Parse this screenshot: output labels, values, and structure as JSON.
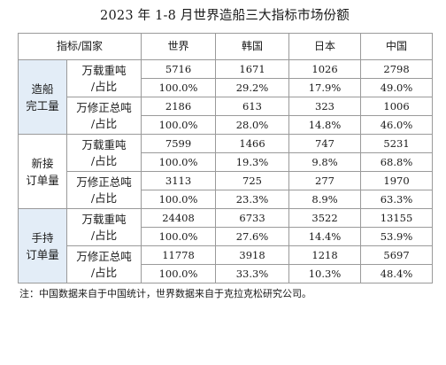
{
  "title": "2023 年 1-8 月世界造船三大指标市场份额",
  "table": {
    "header": [
      "指标/国家",
      "世界",
      "韩国",
      "日本",
      "中国"
    ],
    "groups": [
      {
        "name_line1": "造船",
        "name_line2": "完工量",
        "metrics": [
          {
            "label_line1": "万载重吨",
            "label_line2": "/占比",
            "values": [
              "5716",
              "1671",
              "1026",
              "2798"
            ],
            "shares": [
              "100.0%",
              "29.2%",
              "17.9%",
              "49.0%"
            ]
          },
          {
            "label_line1": "万修正总吨",
            "label_line2": "/占比",
            "values": [
              "2186",
              "613",
              "323",
              "1006"
            ],
            "shares": [
              "100.0%",
              "28.0%",
              "14.8%",
              "46.0%"
            ]
          }
        ]
      },
      {
        "name_line1": "新接",
        "name_line2": "订单量",
        "metrics": [
          {
            "label_line1": "万载重吨",
            "label_line2": "/占比",
            "values": [
              "7599",
              "1466",
              "747",
              "5231"
            ],
            "shares": [
              "100.0%",
              "19.3%",
              "9.8%",
              "68.8%"
            ]
          },
          {
            "label_line1": "万修正总吨",
            "label_line2": "/占比",
            "values": [
              "3113",
              "725",
              "277",
              "1970"
            ],
            "shares": [
              "100.0%",
              "23.3%",
              "8.9%",
              "63.3%"
            ]
          }
        ]
      },
      {
        "name_line1": "手持",
        "name_line2": "订单量",
        "metrics": [
          {
            "label_line1": "万载重吨",
            "label_line2": "/占比",
            "values": [
              "24408",
              "6733",
              "3522",
              "13155"
            ],
            "shares": [
              "100.0%",
              "27.6%",
              "14.4%",
              "53.9%"
            ]
          },
          {
            "label_line1": "万修正总吨",
            "label_line2": "/占比",
            "values": [
              "11778",
              "3918",
              "1218",
              "5697"
            ],
            "shares": [
              "100.0%",
              "33.3%",
              "10.3%",
              "48.4%"
            ]
          }
        ]
      }
    ]
  },
  "footnote": "注：中国数据来自于中国统计，世界数据来自于克拉克松研究公司。",
  "colors": {
    "category_bg": "#e3edf7",
    "border": "#9a9a9a"
  }
}
